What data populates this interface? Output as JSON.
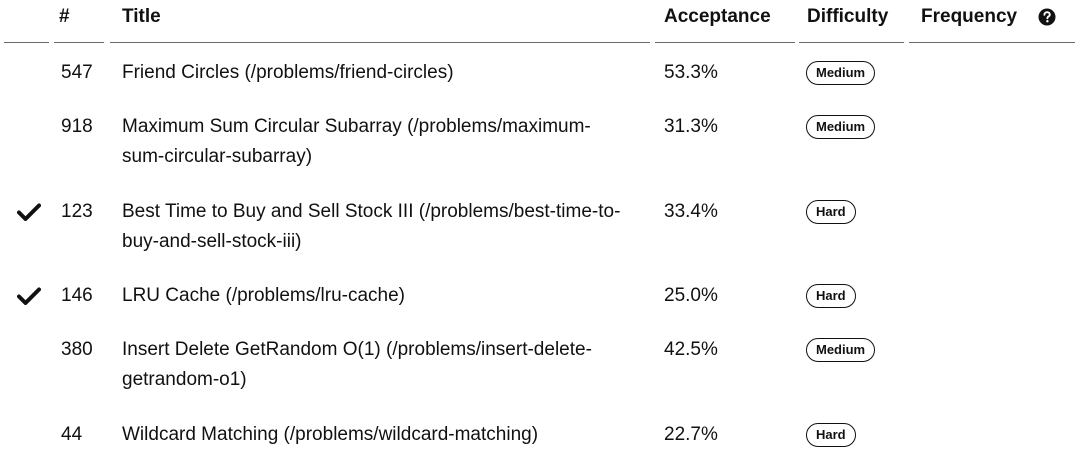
{
  "header": {
    "num": "#",
    "title": "Title",
    "acceptance": "Acceptance",
    "difficulty": "Difficulty",
    "frequency": "Frequency"
  },
  "icons": {
    "help": "question-circle-icon",
    "solved": "checkmark-icon"
  },
  "rows": [
    {
      "solved": false,
      "num": "547",
      "title": "Friend Circles (/problems/friend-circles)",
      "acceptance": "53.3%",
      "difficulty": "Medium"
    },
    {
      "solved": false,
      "num": "918",
      "title": "Maximum Sum Circular Subarray (/problems/maximum-sum-circular-subarray)",
      "acceptance": "31.3%",
      "difficulty": "Medium"
    },
    {
      "solved": true,
      "num": "123",
      "title": "Best Time to Buy and Sell Stock III (/problems/best-time-to-buy-and-sell-stock-iii)",
      "acceptance": "33.4%",
      "difficulty": "Hard"
    },
    {
      "solved": true,
      "num": "146",
      "title": "LRU Cache (/problems/lru-cache)",
      "acceptance": "25.0%",
      "difficulty": "Hard"
    },
    {
      "solved": false,
      "num": "380",
      "title": "Insert Delete GetRandom O(1) (/problems/insert-delete-getrandom-o1)",
      "acceptance": "42.5%",
      "difficulty": "Medium"
    },
    {
      "solved": false,
      "num": "44",
      "title": "Wildcard Matching (/problems/wildcard-matching)",
      "acceptance": "22.7%",
      "difficulty": "Hard"
    }
  ]
}
